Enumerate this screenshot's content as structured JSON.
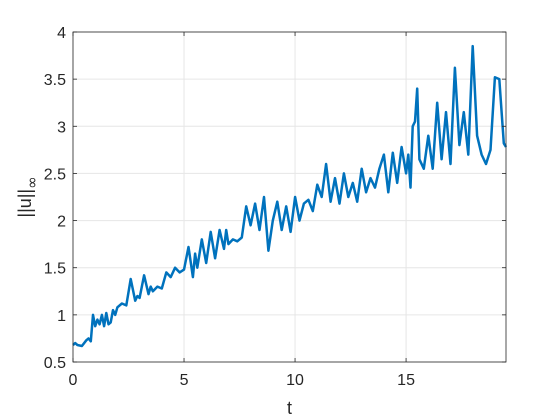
{
  "chart_data": {
    "type": "line",
    "xlabel": "t",
    "ylabel_main": "||u||",
    "ylabel_sub": "∞",
    "xlim": [
      0,
      19.5
    ],
    "ylim": [
      0.5,
      4
    ],
    "grid": true,
    "x_ticks": [
      0,
      5,
      10,
      15
    ],
    "x_tick_labels": [
      "0",
      "5",
      "10",
      "15"
    ],
    "y_ticks": [
      0.5,
      1,
      1.5,
      2,
      2.5,
      3,
      3.5,
      4
    ],
    "y_tick_labels": [
      "0.5",
      "1",
      "1.5",
      "2",
      "2.5",
      "3",
      "3.5",
      "4"
    ],
    "line_color": "#0072BD",
    "series": [
      {
        "x": [
          0.0,
          0.1,
          0.2,
          0.4,
          0.6,
          0.7,
          0.8,
          0.9,
          1.0,
          1.1,
          1.2,
          1.3,
          1.4,
          1.5,
          1.6,
          1.7,
          1.8,
          1.9,
          2.0,
          2.2,
          2.4,
          2.6,
          2.8,
          2.9,
          3.0,
          3.2,
          3.4,
          3.5,
          3.6,
          3.8,
          4.0,
          4.2,
          4.4,
          4.6,
          4.8,
          5.0,
          5.2,
          5.4,
          5.5,
          5.6,
          5.8,
          6.0,
          6.2,
          6.4,
          6.6,
          6.8,
          6.9,
          7.0,
          7.2,
          7.4,
          7.6,
          7.8,
          8.0,
          8.2,
          8.4,
          8.6,
          8.8,
          9.0,
          9.2,
          9.4,
          9.6,
          9.8,
          10.0,
          10.2,
          10.4,
          10.6,
          10.8,
          11.0,
          11.2,
          11.4,
          11.6,
          11.8,
          12.0,
          12.2,
          12.4,
          12.6,
          12.8,
          13.0,
          13.2,
          13.4,
          13.6,
          13.8,
          14.0,
          14.2,
          14.4,
          14.6,
          14.8,
          15.0,
          15.1,
          15.2,
          15.3,
          15.4,
          15.5,
          15.6,
          15.8,
          16.0,
          16.2,
          16.4,
          16.6,
          16.8,
          17.0,
          17.2,
          17.4,
          17.6,
          17.8,
          18.0,
          18.2,
          18.4,
          18.6,
          18.8,
          19.0,
          19.2,
          19.4,
          19.5
        ],
        "y": [
          0.68,
          0.7,
          0.68,
          0.67,
          0.73,
          0.75,
          0.72,
          1.0,
          0.88,
          0.95,
          0.9,
          1.0,
          0.88,
          1.02,
          0.9,
          0.92,
          1.05,
          1.0,
          1.08,
          1.12,
          1.1,
          1.38,
          1.15,
          1.2,
          1.18,
          1.42,
          1.22,
          1.3,
          1.25,
          1.3,
          1.28,
          1.45,
          1.4,
          1.5,
          1.45,
          1.48,
          1.72,
          1.4,
          1.65,
          1.5,
          1.8,
          1.55,
          1.88,
          1.6,
          1.9,
          1.7,
          1.9,
          1.75,
          1.8,
          1.78,
          1.82,
          2.15,
          1.95,
          2.18,
          1.9,
          2.25,
          1.68,
          2.0,
          2.2,
          1.9,
          2.15,
          1.88,
          2.25,
          2.0,
          2.18,
          2.22,
          2.1,
          2.38,
          2.25,
          2.6,
          2.2,
          2.45,
          2.18,
          2.5,
          2.25,
          2.4,
          2.2,
          2.55,
          2.3,
          2.45,
          2.35,
          2.55,
          2.7,
          2.3,
          2.72,
          2.4,
          2.78,
          2.5,
          2.7,
          2.35,
          3.0,
          3.05,
          3.4,
          2.65,
          2.55,
          2.9,
          2.55,
          3.25,
          2.65,
          3.15,
          2.6,
          3.62,
          2.8,
          3.15,
          2.7,
          3.85,
          2.9,
          2.7,
          2.6,
          2.75,
          3.52,
          3.5,
          2.82,
          2.78
        ]
      }
    ]
  }
}
